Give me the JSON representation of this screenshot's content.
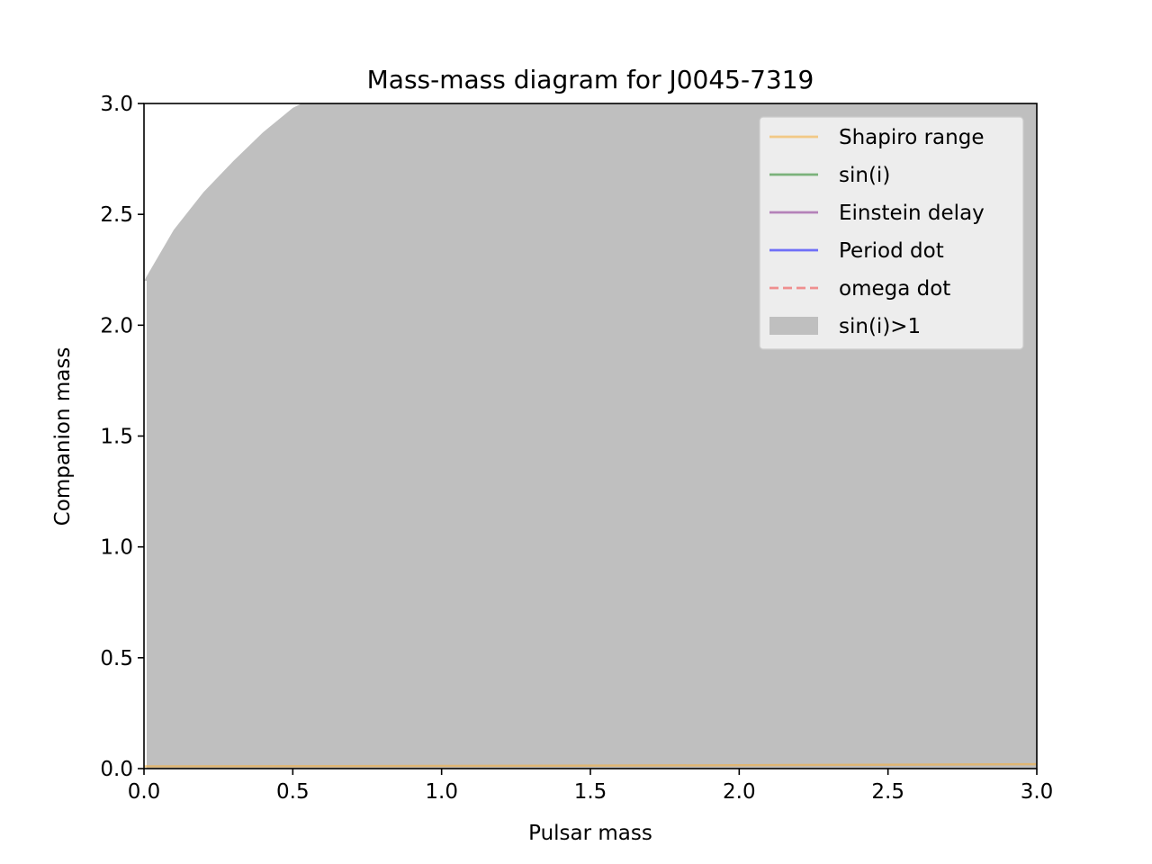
{
  "chart_data": {
    "type": "area",
    "title": "Mass-mass diagram for J0045-7319",
    "xlabel": "Pulsar mass",
    "ylabel": "Companion mass",
    "xlim": [
      0.0,
      3.0
    ],
    "ylim": [
      0.0,
      3.0
    ],
    "xticks": [
      "0.0",
      "0.5",
      "1.0",
      "1.5",
      "2.0",
      "2.5",
      "3.0"
    ],
    "yticks": [
      "0.0",
      "0.5",
      "1.0",
      "1.5",
      "2.0",
      "2.5",
      "3.0"
    ],
    "grid": false,
    "legend_position": "top-right",
    "series": [
      {
        "name": "Shapiro range",
        "kind": "line",
        "color": "#f5b041",
        "x": [
          0.0,
          3.0
        ],
        "y": [
          0.0,
          0.0
        ]
      },
      {
        "name": "sin(i)",
        "kind": "line",
        "color": "#2e8b2e",
        "x": [],
        "y": []
      },
      {
        "name": "Einstein delay",
        "kind": "line",
        "color": "#8e3b96",
        "x": [],
        "y": []
      },
      {
        "name": "Period dot",
        "kind": "line",
        "color": "#1a1aff",
        "x": [],
        "y": []
      },
      {
        "name": "omega dot",
        "kind": "dashed-line",
        "color": "#f05050",
        "x": [],
        "y": []
      },
      {
        "name": "sin(i)>1",
        "kind": "fill",
        "color": "#bfbfbf",
        "x": [
          0.0,
          0.1,
          0.2,
          0.3,
          0.4,
          0.5,
          0.53
        ],
        "y": [
          2.2,
          2.43,
          2.6,
          2.74,
          2.87,
          2.98,
          3.0
        ]
      }
    ],
    "bottom_curve": {
      "color": "#f5b041",
      "x": [
        0.0,
        1.0,
        2.0,
        3.0
      ],
      "y": [
        0.01,
        0.012,
        0.015,
        0.02
      ]
    }
  }
}
